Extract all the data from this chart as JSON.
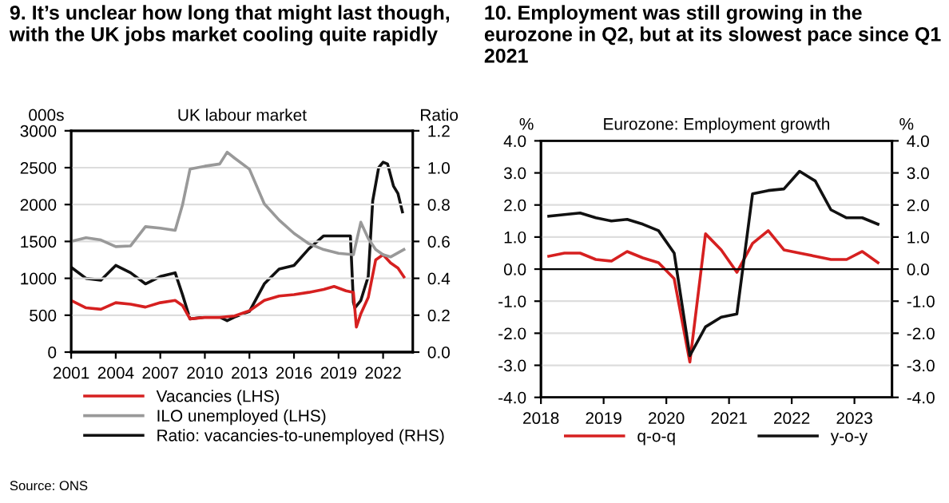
{
  "chart_data": [
    {
      "type": "line",
      "title": "9. It’s unclear how long that might last though, with the UK jobs market cooling quite rapidly",
      "subtitle": "UK labour market",
      "ylabel": "000s",
      "y2label": "Ratio",
      "xlim": [
        2001,
        2024
      ],
      "xticks": [
        2001,
        2004,
        2007,
        2010,
        2013,
        2016,
        2019,
        2022
      ],
      "ylim": [
        0,
        3000
      ],
      "yticks": [
        0,
        500,
        1000,
        1500,
        2000,
        2500,
        3000
      ],
      "y2lim": [
        0,
        1.2
      ],
      "y2ticks": [
        {
          "value": 0,
          "label": "0.0"
        },
        {
          "value": 0.2,
          "label": "0.2"
        },
        {
          "value": 0.4,
          "label": "0.4"
        },
        {
          "value": 0.6,
          "label": "0.6"
        },
        {
          "value": 0.8,
          "label": "0.8"
        },
        {
          "value": 1.0,
          "label": "1.0"
        },
        {
          "value": 1.2,
          "label": "1.2"
        }
      ],
      "grid": "y",
      "legend": "bottom",
      "line_style": "solid",
      "marker": "none",
      "annotations": [
        "Source: ONS"
      ],
      "series": [
        {
          "name": "Vacancies (LHS)",
          "color": "#d62020",
          "x": [
            2001,
            2002,
            2003,
            2004,
            2005,
            2006,
            2007,
            2008,
            2008.5,
            2009,
            2010,
            2011,
            2012,
            2013,
            2014,
            2015,
            2016,
            2017,
            2018,
            2018.7,
            2019.5,
            2020.0,
            2020.2,
            2020.5,
            2021,
            2021.5,
            2022,
            2022.5,
            2023,
            2023.4
          ],
          "values": [
            700,
            600,
            580,
            670,
            650,
            610,
            670,
            700,
            630,
            450,
            470,
            470,
            490,
            560,
            700,
            760,
            780,
            810,
            850,
            890,
            830,
            810,
            340,
            520,
            740,
            1250,
            1320,
            1210,
            1140,
            1020
          ]
        },
        {
          "name": "ILO unemployed (LHS)",
          "color": "#999999",
          "x": [
            2001,
            2002,
            2003,
            2004,
            2005,
            2006,
            2007,
            2008,
            2008.5,
            2009,
            2010,
            2011,
            2011.5,
            2012,
            2013,
            2014,
            2015,
            2016,
            2017,
            2018,
            2019,
            2020,
            2020.5,
            2021,
            2021.5,
            2022,
            2022.5,
            2023.4
          ],
          "values": [
            1500,
            1550,
            1520,
            1430,
            1440,
            1700,
            1680,
            1650,
            2000,
            2480,
            2520,
            2550,
            2710,
            2630,
            2480,
            2010,
            1790,
            1610,
            1470,
            1390,
            1340,
            1320,
            1760,
            1540,
            1390,
            1320,
            1290,
            1390
          ]
        },
        {
          "name": "Ratio: vacancies-to-unemployed (RHS)",
          "color": "#111111",
          "axis": "y2",
          "x": [
            2001,
            2002,
            2003,
            2004,
            2005,
            2006,
            2007,
            2008,
            2008.5,
            2009,
            2010,
            2011,
            2011.5,
            2012,
            2013,
            2014,
            2015,
            2016,
            2017,
            2018,
            2019,
            2019.8,
            2020.0,
            2020.1,
            2020.5,
            2021,
            2021.3,
            2021.7,
            2022,
            2022.3,
            2022.7,
            2023.0,
            2023.3
          ],
          "values": [
            0.46,
            0.4,
            0.39,
            0.47,
            0.43,
            0.37,
            0.41,
            0.43,
            0.31,
            0.18,
            0.19,
            0.19,
            0.17,
            0.19,
            0.22,
            0.37,
            0.45,
            0.47,
            0.56,
            0.63,
            0.63,
            0.63,
            0.27,
            0.24,
            0.28,
            0.41,
            0.82,
            1.0,
            1.03,
            1.02,
            0.9,
            0.86,
            0.76
          ]
        }
      ]
    },
    {
      "type": "line",
      "title": "10. Employment was still growing in the eurozone in Q2, but at its slowest pace since Q1 2021",
      "subtitle": "Eurozone: Employment growth",
      "ylabel": "%",
      "y2label": "%",
      "xlim": [
        2018,
        2023.6
      ],
      "xticks": [
        2018,
        2019,
        2020,
        2021,
        2022,
        2023
      ],
      "ylim": [
        -4,
        4
      ],
      "yticks": [
        {
          "value": -4,
          "label": "-4.0"
        },
        {
          "value": -3,
          "label": "-3.0"
        },
        {
          "value": -2,
          "label": "-2.0"
        },
        {
          "value": -1,
          "label": "-1.0"
        },
        {
          "value": 0,
          "label": "0.0"
        },
        {
          "value": 1,
          "label": "1.0"
        },
        {
          "value": 2,
          "label": "2.0"
        },
        {
          "value": 3,
          "label": "3.0"
        },
        {
          "value": 4,
          "label": "4.0"
        }
      ],
      "y2lim": [
        -4,
        4
      ],
      "y2ticks": [
        {
          "value": -4,
          "label": "-4.0"
        },
        {
          "value": -3,
          "label": "-3.0"
        },
        {
          "value": -2,
          "label": "-2.0"
        },
        {
          "value": -1,
          "label": "-1.0"
        },
        {
          "value": 0,
          "label": "0.0"
        },
        {
          "value": 1,
          "label": "1.0"
        },
        {
          "value": 2,
          "label": "2.0"
        },
        {
          "value": 3,
          "label": "3.0"
        },
        {
          "value": 4,
          "label": "4.0"
        }
      ],
      "ref_lines": [
        {
          "axis": "y",
          "value": 0,
          "color": "#000000"
        }
      ],
      "grid": "y",
      "legend": "bottom",
      "line_style": "solid",
      "marker": "none",
      "x": [
        2018.125,
        2018.375,
        2018.625,
        2018.875,
        2019.125,
        2019.375,
        2019.625,
        2019.875,
        2020.125,
        2020.375,
        2020.625,
        2020.875,
        2021.125,
        2021.375,
        2021.625,
        2021.875,
        2022.125,
        2022.375,
        2022.625,
        2022.875,
        2023.125,
        2023.375
      ],
      "series": [
        {
          "name": "q-o-q",
          "color": "#d62020",
          "values": [
            0.4,
            0.5,
            0.5,
            0.3,
            0.25,
            0.55,
            0.35,
            0.2,
            -0.3,
            -2.9,
            1.1,
            0.6,
            -0.1,
            0.8,
            1.2,
            0.6,
            0.5,
            0.4,
            0.3,
            0.3,
            0.55,
            0.2
          ]
        },
        {
          "name": "y-o-y",
          "color": "#111111",
          "values": [
            1.65,
            1.7,
            1.75,
            1.6,
            1.5,
            1.55,
            1.4,
            1.2,
            0.5,
            -2.7,
            -1.8,
            -1.5,
            -1.4,
            2.35,
            2.45,
            2.5,
            3.05,
            2.75,
            1.85,
            1.6,
            1.6,
            1.4
          ]
        }
      ]
    }
  ]
}
